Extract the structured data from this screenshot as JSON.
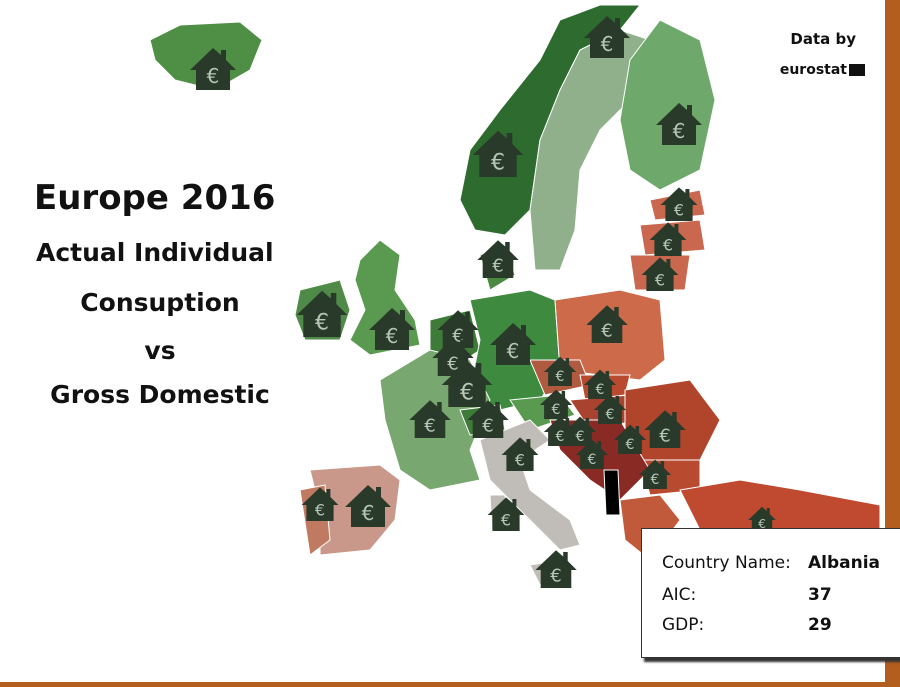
{
  "title": {
    "line1": "Europe 2016",
    "line2": "Actual Individual",
    "line3": "Consuption",
    "line4": "vs",
    "line5": "Gross Domestic"
  },
  "credit": {
    "label": "Data by",
    "source": "eurostat"
  },
  "marker_icon": "house-euro-icon",
  "tooltip": {
    "country_label": "Country Name:",
    "country_value": "Albania",
    "aic_label": "AIC:",
    "aic_value": "37",
    "gdp_label": "GDP:",
    "gdp_value": "29"
  },
  "colors": {
    "frame": "#b35e1e",
    "high_green": "#2e6b2e",
    "mid_green": "#6ea86a",
    "neutral": "#c0bdb8",
    "low_red": "#b0452c",
    "selected": "#000000"
  }
}
